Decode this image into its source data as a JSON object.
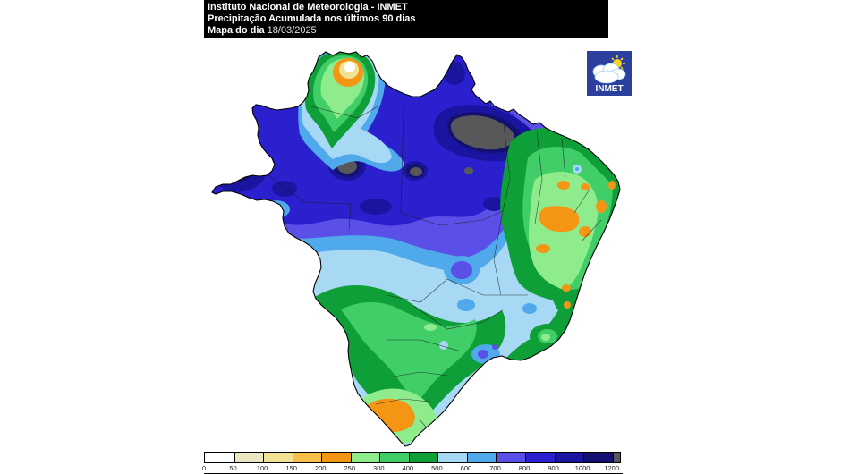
{
  "title_box": {
    "line1": "Instituto Nacional de Meteorologia - INMET",
    "line2": "Precipitação Acumulada nos últimos 90 dias",
    "line3_label": "Mapa do dia",
    "line3_value": "18/03/2025"
  },
  "logo": {
    "text": "INMET",
    "background_color": "#2B3F9E",
    "sun_color": "#F7D51D",
    "cloud_color": "#FFFFFF"
  },
  "legend": {
    "tick_labels": [
      "0",
      "50",
      "100",
      "150",
      "200",
      "250",
      "300",
      "400",
      "500",
      "600",
      "700",
      "800",
      "900",
      "1000",
      "1200"
    ],
    "segment_colors": [
      "#FFFFFF",
      "#EBE7C2",
      "#F2E394",
      "#F6BF4A",
      "#F49514",
      "#8FEC8D",
      "#41CD68",
      "#0F9F38",
      "#A8D9F4",
      "#4FA9EA",
      "#5A50E8",
      "#2A20CE",
      "#1A15A0",
      "#131070"
    ],
    "overflow_color": "#58585A"
  },
  "map": {
    "palette": {
      "mm_0_50": "#FFFFFF",
      "mm_50_100": "#EBE7C2",
      "mm_100_150": "#F2E394",
      "mm_150_200": "#F6BF4A",
      "mm_200_250": "#F49514",
      "mm_250_300": "#8FEC8D",
      "mm_300_400": "#41CD68",
      "mm_400_500": "#0F9F38",
      "mm_500_600": "#A8D9F4",
      "mm_600_700": "#4FA9EA",
      "mm_700_800": "#5A50E8",
      "mm_800_900": "#2A20CE",
      "mm_900_1000": "#1A15A0",
      "mm_1000_1200": "#131070",
      "mm_above_1200": "#58585A",
      "outline": "#000000",
      "state_border": "#1a1a1a"
    }
  }
}
